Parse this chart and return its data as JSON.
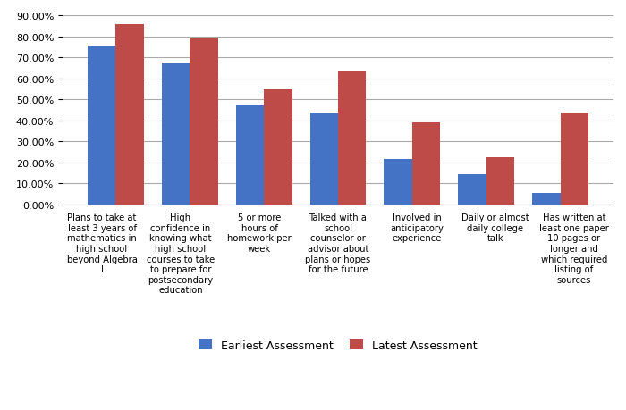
{
  "categories": [
    "Plans to take at\nleast 3 years of\nmathematics in\nhigh school\nbeyond Algebra\nI",
    "High\nconfidence in\nknowing what\nhigh school\ncourses to take\nto prepare for\npostsecondary\neducation",
    "5 or more\nhours of\nhomework per\nweek",
    "Talked with a\nschool\ncounselor or\nadvisor about\nplans or hopes\nfor the future",
    "Involved in\nanticipatory\nexperience",
    "Daily or almost\ndaily college\ntalk",
    "Has written at\nleast one paper\n10 pages or\nlonger and\nwhich required\nlisting of\nsources"
  ],
  "earliest": [
    0.755,
    0.675,
    0.47,
    0.44,
    0.215,
    0.145,
    0.055
  ],
  "latest": [
    0.86,
    0.795,
    0.55,
    0.635,
    0.39,
    0.225,
    0.44
  ],
  "bar_color_earliest": "#4472C4",
  "bar_color_latest": "#BE4B48",
  "legend_labels": [
    "Earliest Assessment",
    "Latest Assessment"
  ],
  "ylim": [
    0.0,
    0.9
  ],
  "yticks": [
    0.0,
    0.1,
    0.2,
    0.3,
    0.4,
    0.5,
    0.6,
    0.7,
    0.8,
    0.9
  ],
  "background_color": "#FFFFFF",
  "grid_color": "#AAAAAA",
  "tick_fontsize": 8,
  "label_fontsize": 7.2,
  "legend_fontsize": 9
}
